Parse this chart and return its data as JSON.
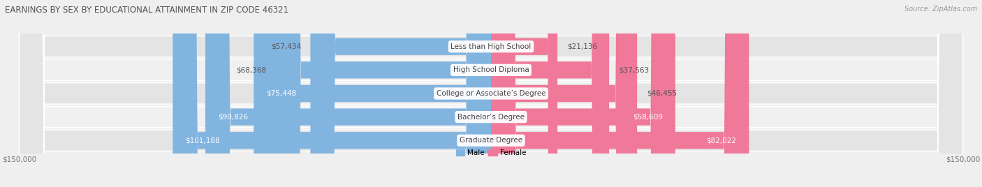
{
  "title": "EARNINGS BY SEX BY EDUCATIONAL ATTAINMENT IN ZIP CODE 46321",
  "source": "Source: ZipAtlas.com",
  "categories": [
    "Less than High School",
    "High School Diploma",
    "College or Associate’s Degree",
    "Bachelor’s Degree",
    "Graduate Degree"
  ],
  "male_values": [
    57434,
    68368,
    75448,
    90826,
    101188
  ],
  "female_values": [
    21136,
    37563,
    46455,
    58609,
    82022
  ],
  "male_color": "#82B4E0",
  "female_color": "#F07898",
  "male_label": "Male",
  "female_label": "Female",
  "max_value": 150000,
  "bg_color": "#EFEFEF",
  "row_colors": [
    "#E4E4E4",
    "#F0F0F0"
  ],
  "title_fontsize": 8.5,
  "label_fontsize": 7.5,
  "cat_fontsize": 7.5,
  "tick_fontsize": 7.5,
  "source_fontsize": 7.0
}
